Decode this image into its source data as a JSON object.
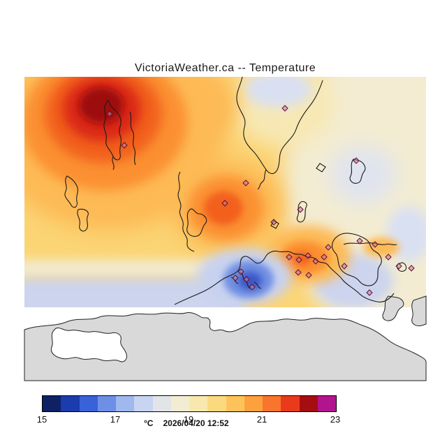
{
  "title": "VictoriaWeather.ca -- Temperature",
  "colorbar": {
    "unit": "°C",
    "timestamp": "2026/04/20 12:52",
    "tick_labels": [
      "15",
      "17",
      "19",
      "21",
      "23"
    ],
    "segments": [
      "#0d2164",
      "#1b3cae",
      "#3a62d8",
      "#6d8fe6",
      "#9fb8ee",
      "#c8d4f2",
      "#e3e4e8",
      "#f1ecd2",
      "#f8e8ae",
      "#fbd97e",
      "#fdc35a",
      "#fda03e",
      "#f9742c",
      "#e93a1b",
      "#a50d11",
      "#b2148e"
    ]
  },
  "map_colors": {
    "base_yellow": "#fbd474",
    "warm1": "#fdba55",
    "warm2": "#fb9032",
    "warm3": "#f2601f",
    "hot_red": "#d92613",
    "hot_core": "#9e0b10",
    "cream": "#f3ecd2",
    "pale_yellow": "#f7e8b4",
    "pale_blue": "#d9e0f2",
    "pale_blue_soft": "#e0e4ef",
    "lavender": "#ccd4ee",
    "cold_pale": "#c7d2f0",
    "cold_mid": "#6f8fe2",
    "cold_core": "#3a57c8",
    "land_gray": "#d9d9d9",
    "water_white": "#ffffff",
    "coastline": "#1b1b1b",
    "marker_fill": "#c080a8",
    "marker_stroke": "#64102e"
  },
  "stations": [
    [
      157,
      163
    ],
    [
      178,
      208
    ],
    [
      322,
      291
    ],
    [
      352,
      262
    ],
    [
      408,
      155
    ],
    [
      430,
      300
    ],
    [
      392,
      318
    ],
    [
      414,
      368
    ],
    [
      428,
      372
    ],
    [
      441,
      366
    ],
    [
      452,
      374
    ],
    [
      464,
      368
    ],
    [
      427,
      390
    ],
    [
      442,
      394
    ],
    [
      345,
      389
    ],
    [
      353,
      400
    ],
    [
      361,
      411
    ],
    [
      337,
      398
    ],
    [
      470,
      354
    ],
    [
      493,
      381
    ],
    [
      515,
      345
    ],
    [
      537,
      350
    ],
    [
      556,
      368
    ],
    [
      571,
      381
    ],
    [
      529,
      419
    ],
    [
      510,
      230
    ],
    [
      589,
      384
    ]
  ]
}
